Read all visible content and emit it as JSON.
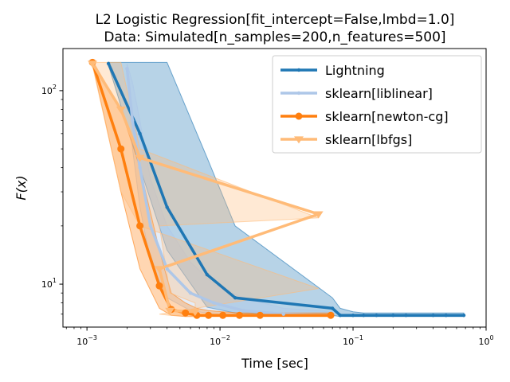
{
  "chart_data": {
    "type": "line",
    "title": "L2 Logistic Regression[fit_intercept=False,lmbd=1.0]",
    "subtitle": "Data: Simulated[n_samples=200,n_features=500]",
    "xlabel": "Time [sec]",
    "ylabel": "F(x)",
    "xscale": "log",
    "yscale": "log",
    "xlim": [
      0.00066,
      1.0
    ],
    "ylim": [
      6.0,
      165
    ],
    "xticks": [
      {
        "value": 0.001,
        "base": "10",
        "exp": "−3"
      },
      {
        "value": 0.01,
        "base": "10",
        "exp": "−2"
      },
      {
        "value": 0.1,
        "base": "10",
        "exp": "−1"
      },
      {
        "value": 1.0,
        "base": "10",
        "exp": "0"
      }
    ],
    "yticks": [
      {
        "value": 10,
        "base": "10",
        "exp": "1"
      },
      {
        "value": 100,
        "base": "10",
        "exp": "2"
      }
    ],
    "grid": false,
    "legend_position": "top-right",
    "series": [
      {
        "name": "Lightning",
        "color": "#1f77b4",
        "marker": "point",
        "x": [
          0.00145,
          0.0025,
          0.004,
          0.008,
          0.013,
          0.07,
          0.08,
          0.1,
          0.12,
          0.15,
          0.2,
          0.25,
          0.4,
          0.5,
          0.68
        ],
        "y": [
          138,
          60,
          25,
          11.2,
          8.5,
          7.5,
          6.9,
          6.9,
          6.9,
          6.9,
          6.9,
          6.9,
          6.9,
          6.9,
          6.9
        ],
        "band_upper": [
          140,
          140,
          140,
          45,
          20,
          8.5,
          7.5,
          7.2,
          7.1,
          7.1,
          7.1,
          7.1,
          7.1,
          7.1,
          7.1
        ],
        "band_lower": [
          135,
          40,
          15,
          7.6,
          7.1,
          6.9,
          6.8,
          6.8,
          6.8,
          6.8,
          6.8,
          6.8,
          6.8,
          6.8,
          6.8
        ]
      },
      {
        "name": "sklearn[liblinear]",
        "color": "#aec7e8",
        "marker": "point",
        "x": [
          0.002,
          0.0022,
          0.0025,
          0.003,
          0.004,
          0.006,
          0.009,
          0.015,
          0.03,
          0.07
        ],
        "y": [
          130,
          70,
          40,
          20,
          12,
          9,
          8.0,
          7.3,
          7.0,
          6.9
        ],
        "band_upper": [
          138,
          110,
          70,
          35,
          20,
          13,
          10,
          8.5,
          7.5,
          7.2
        ],
        "band_lower": [
          125,
          50,
          25,
          13,
          8.5,
          7.3,
          7.0,
          6.9,
          6.85,
          6.8
        ]
      },
      {
        "name": "sklearn[newton-cg]",
        "color": "#ff7f0e",
        "marker": "circle",
        "x": [
          0.0011,
          0.0018,
          0.0025,
          0.0035,
          0.0043,
          0.0055,
          0.0067,
          0.0082,
          0.0105,
          0.014,
          0.02,
          0.068
        ],
        "y": [
          140,
          50,
          20,
          9.8,
          7.4,
          7.1,
          6.9,
          6.9,
          6.9,
          6.9,
          6.9,
          6.9
        ],
        "band_upper": [
          143,
          80,
          40,
          15,
          9,
          8,
          7.5,
          7.3,
          7.2,
          7.1,
          7.1,
          7.1
        ],
        "band_lower": [
          138,
          30,
          12,
          7.5,
          6.9,
          6.8,
          6.8,
          6.8,
          6.8,
          6.8,
          6.8,
          6.8
        ]
      },
      {
        "name": "sklearn[lbfgs]",
        "color": "#ffbb78",
        "marker": "triangle_down",
        "x": [
          0.0011,
          0.0018,
          0.0025,
          0.055,
          0.0035,
          0.0042,
          0.0065
        ],
        "y": [
          138,
          80,
          45,
          23,
          12,
          7.3,
          7.2
        ],
        "band_upper": [
          140,
          140,
          50,
          22,
          20,
          9,
          8
        ],
        "band_lower": [
          135,
          30,
          20,
          9.5,
          7,
          6.9,
          6.9
        ]
      }
    ]
  }
}
